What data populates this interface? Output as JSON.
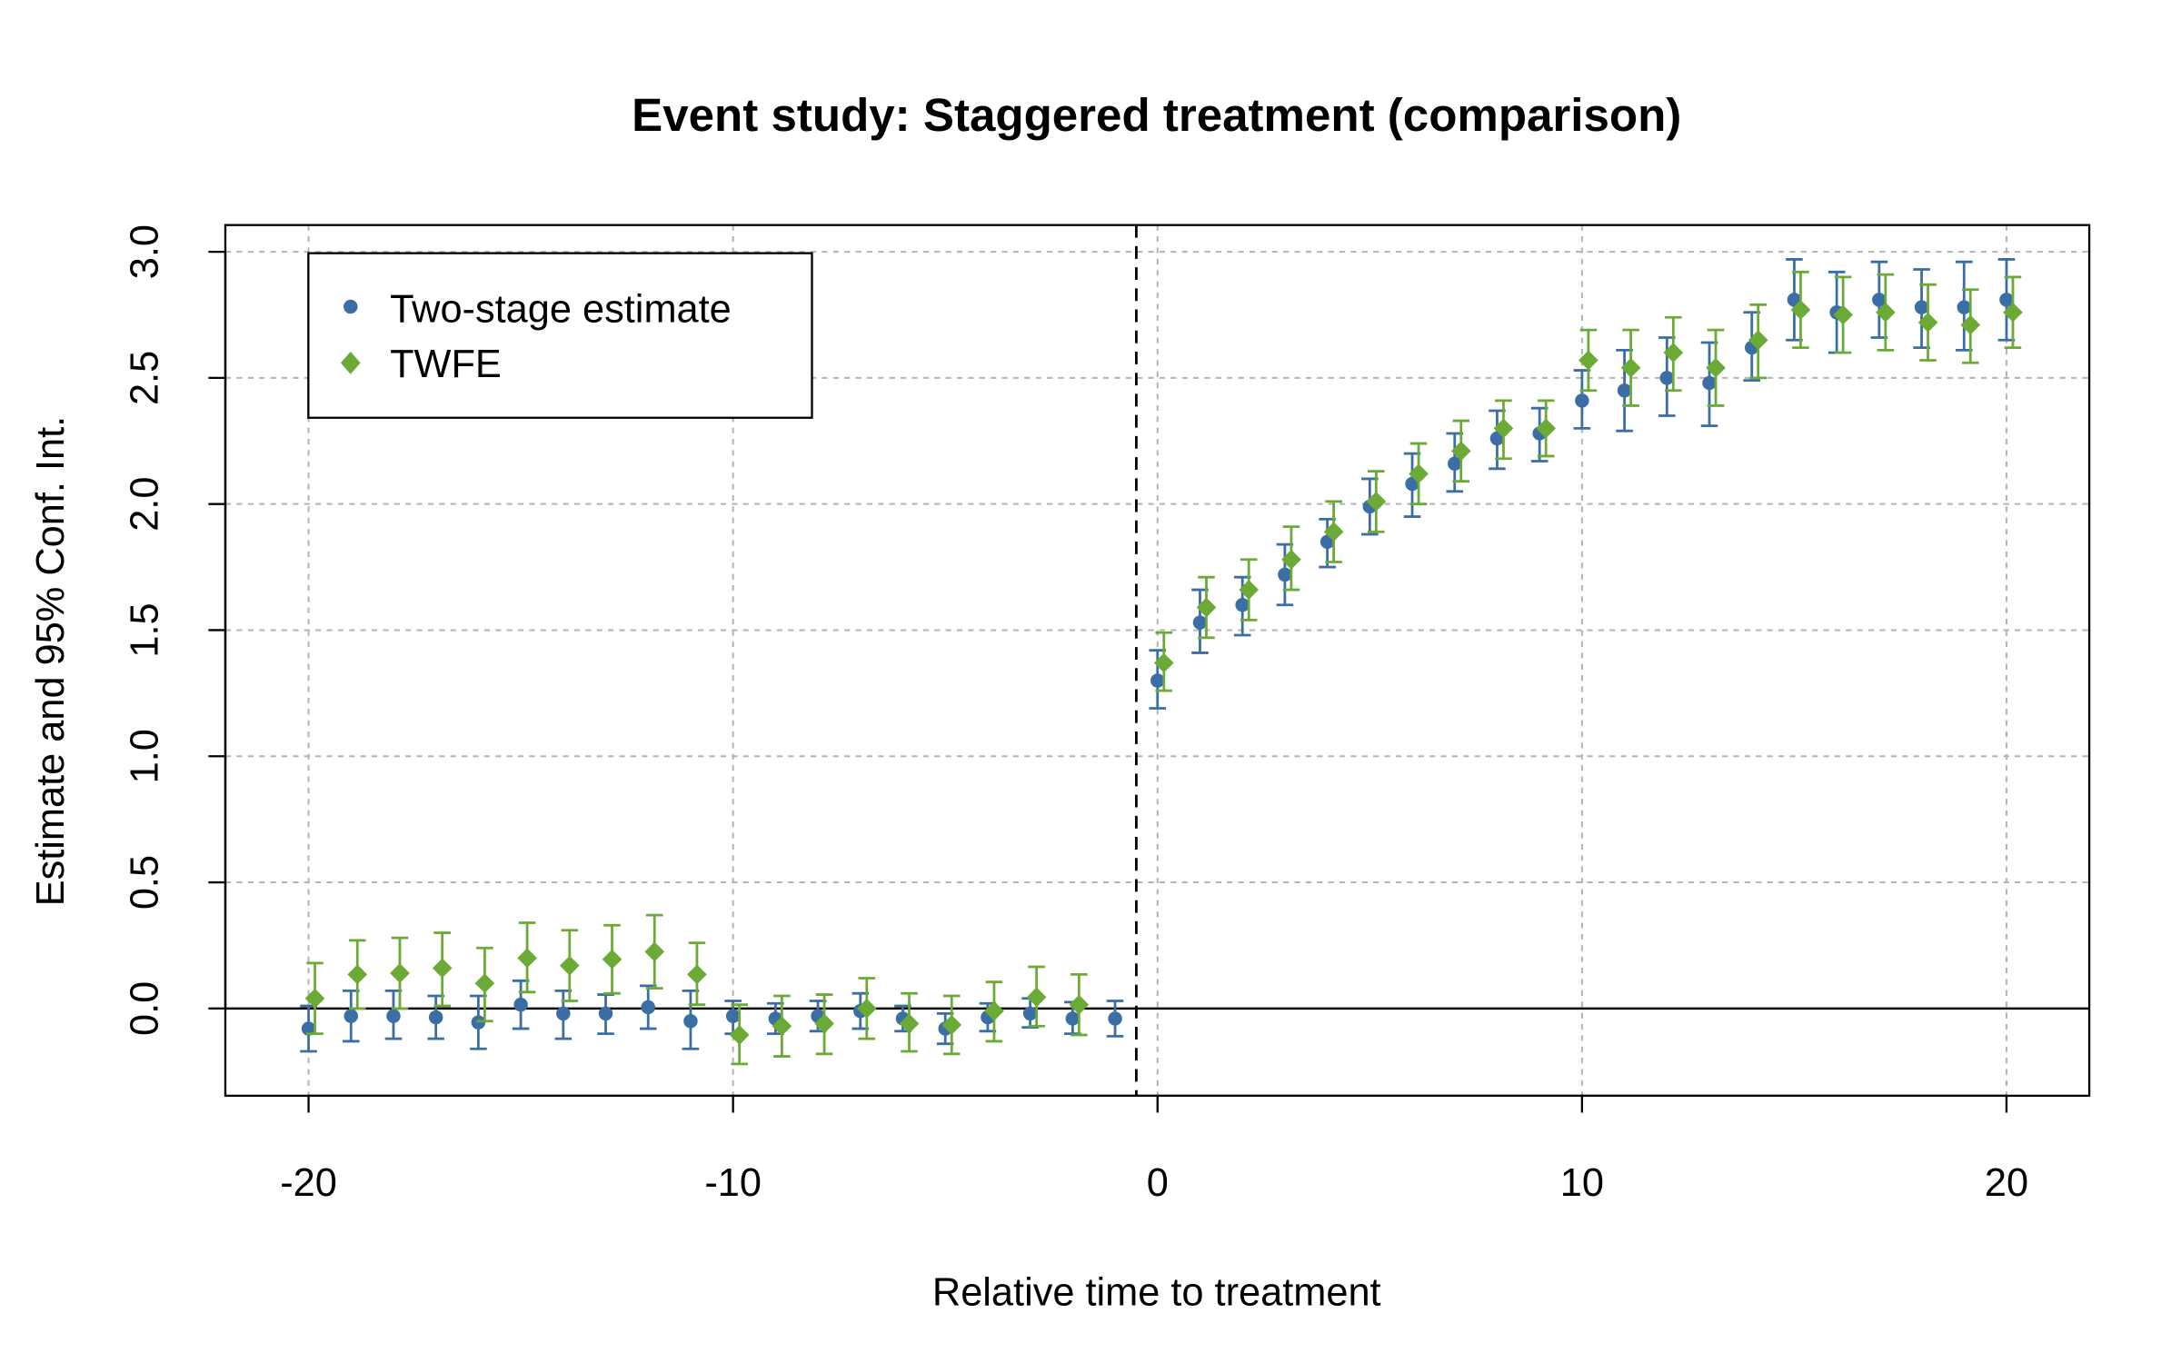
{
  "chart_data": {
    "type": "scatter",
    "title": "Event study: Staggered treatment (comparison)",
    "xlabel": "Relative time to treatment",
    "ylabel": "Estimate and 95% Conf. Int.",
    "xlim": [
      -21.96,
      21.95
    ],
    "ylim": [
      -0.346,
      3.106
    ],
    "xticks": [
      -20,
      -10,
      0,
      10,
      20
    ],
    "xtick_labels": [
      "-20",
      "-10",
      "0",
      "10",
      "20"
    ],
    "yticks": [
      0,
      0.5,
      1,
      1.5,
      2,
      2.5,
      3
    ],
    "ytick_labels": [
      "0.0",
      "0.5",
      "1.0",
      "1.5",
      "2.0",
      "2.5",
      "3.0"
    ],
    "grid": true,
    "hline": 0,
    "vline_dashed": -0.5,
    "legend_position": "top-left",
    "series": [
      {
        "name": "Two-stage estimate",
        "color": "#3a6ea5",
        "marker": "circle",
        "x_offset": 0,
        "x": [
          -20,
          -19,
          -18,
          -17,
          -16,
          -15,
          -14,
          -13,
          -12,
          -11,
          -10,
          -9,
          -8,
          -7,
          -6,
          -5,
          -4,
          -3,
          -2,
          -1,
          0,
          1,
          2,
          3,
          4,
          5,
          6,
          7,
          8,
          9,
          10,
          11,
          12,
          13,
          14,
          15,
          16,
          17,
          18,
          19,
          20
        ],
        "y": [
          -0.08,
          -0.03,
          -0.03,
          -0.035,
          -0.055,
          0.015,
          -0.02,
          -0.02,
          0.005,
          -0.05,
          -0.03,
          -0.04,
          -0.03,
          -0.01,
          -0.04,
          -0.08,
          -0.035,
          -0.02,
          -0.04,
          -0.04,
          1.3,
          1.53,
          1.6,
          1.72,
          1.85,
          1.99,
          2.08,
          2.16,
          2.26,
          2.28,
          2.41,
          2.45,
          2.5,
          2.48,
          2.62,
          2.81,
          2.76,
          2.81,
          2.78,
          2.78,
          2.81
        ],
        "lower": [
          -0.17,
          -0.13,
          -0.12,
          -0.12,
          -0.16,
          -0.08,
          -0.12,
          -0.1,
          -0.08,
          -0.16,
          -0.1,
          -0.1,
          -0.09,
          -0.08,
          -0.09,
          -0.14,
          -0.09,
          -0.075,
          -0.1,
          -0.11,
          1.19,
          1.41,
          1.48,
          1.6,
          1.75,
          1.88,
          1.95,
          2.05,
          2.14,
          2.17,
          2.3,
          2.29,
          2.35,
          2.31,
          2.49,
          2.65,
          2.6,
          2.66,
          2.62,
          2.61,
          2.65
        ],
        "upper": [
          0.01,
          0.07,
          0.07,
          0.05,
          0.05,
          0.11,
          0.07,
          0.055,
          0.09,
          0.07,
          0.03,
          0.02,
          0.03,
          0.06,
          0.01,
          -0.02,
          0.02,
          0.04,
          0.025,
          0.03,
          1.42,
          1.66,
          1.71,
          1.84,
          1.94,
          2.1,
          2.2,
          2.28,
          2.37,
          2.38,
          2.53,
          2.61,
          2.66,
          2.64,
          2.76,
          2.97,
          2.92,
          2.96,
          2.93,
          2.96,
          2.97
        ]
      },
      {
        "name": "TWFE",
        "color": "#6aaa35",
        "marker": "diamond",
        "x_offset": 0.15,
        "x": [
          -20,
          -19,
          -18,
          -17,
          -16,
          -15,
          -14,
          -13,
          -12,
          -11,
          -10,
          -9,
          -8,
          -7,
          -6,
          -5,
          -4,
          -3,
          -2,
          0,
          1,
          2,
          3,
          4,
          5,
          6,
          7,
          8,
          9,
          10,
          11,
          12,
          13,
          14,
          15,
          16,
          17,
          18,
          19,
          20
        ],
        "y": [
          0.04,
          0.135,
          0.14,
          0.16,
          0.1,
          0.2,
          0.17,
          0.195,
          0.225,
          0.135,
          -0.105,
          -0.07,
          -0.06,
          0.0,
          -0.06,
          -0.065,
          -0.01,
          0.045,
          0.015,
          1.37,
          1.59,
          1.66,
          1.78,
          1.89,
          2.01,
          2.12,
          2.21,
          2.3,
          2.3,
          2.57,
          2.54,
          2.6,
          2.54,
          2.65,
          2.77,
          2.75,
          2.76,
          2.72,
          2.71,
          2.76
        ],
        "lower": [
          -0.1,
          0.0,
          0.0,
          0.01,
          -0.05,
          0.065,
          0.03,
          0.06,
          0.08,
          0.015,
          -0.22,
          -0.19,
          -0.18,
          -0.12,
          -0.17,
          -0.18,
          -0.13,
          -0.07,
          -0.105,
          1.26,
          1.47,
          1.54,
          1.66,
          1.77,
          1.89,
          2.0,
          2.09,
          2.18,
          2.19,
          2.45,
          2.39,
          2.45,
          2.39,
          2.5,
          2.62,
          2.6,
          2.61,
          2.57,
          2.56,
          2.62
        ],
        "upper": [
          0.18,
          0.27,
          0.28,
          0.3,
          0.24,
          0.34,
          0.31,
          0.33,
          0.37,
          0.26,
          0.015,
          0.05,
          0.055,
          0.12,
          0.06,
          0.05,
          0.105,
          0.165,
          0.135,
          1.49,
          1.71,
          1.78,
          1.91,
          2.01,
          2.13,
          2.24,
          2.33,
          2.41,
          2.41,
          2.69,
          2.69,
          2.74,
          2.69,
          2.79,
          2.92,
          2.9,
          2.91,
          2.87,
          2.85,
          2.9
        ]
      }
    ]
  }
}
